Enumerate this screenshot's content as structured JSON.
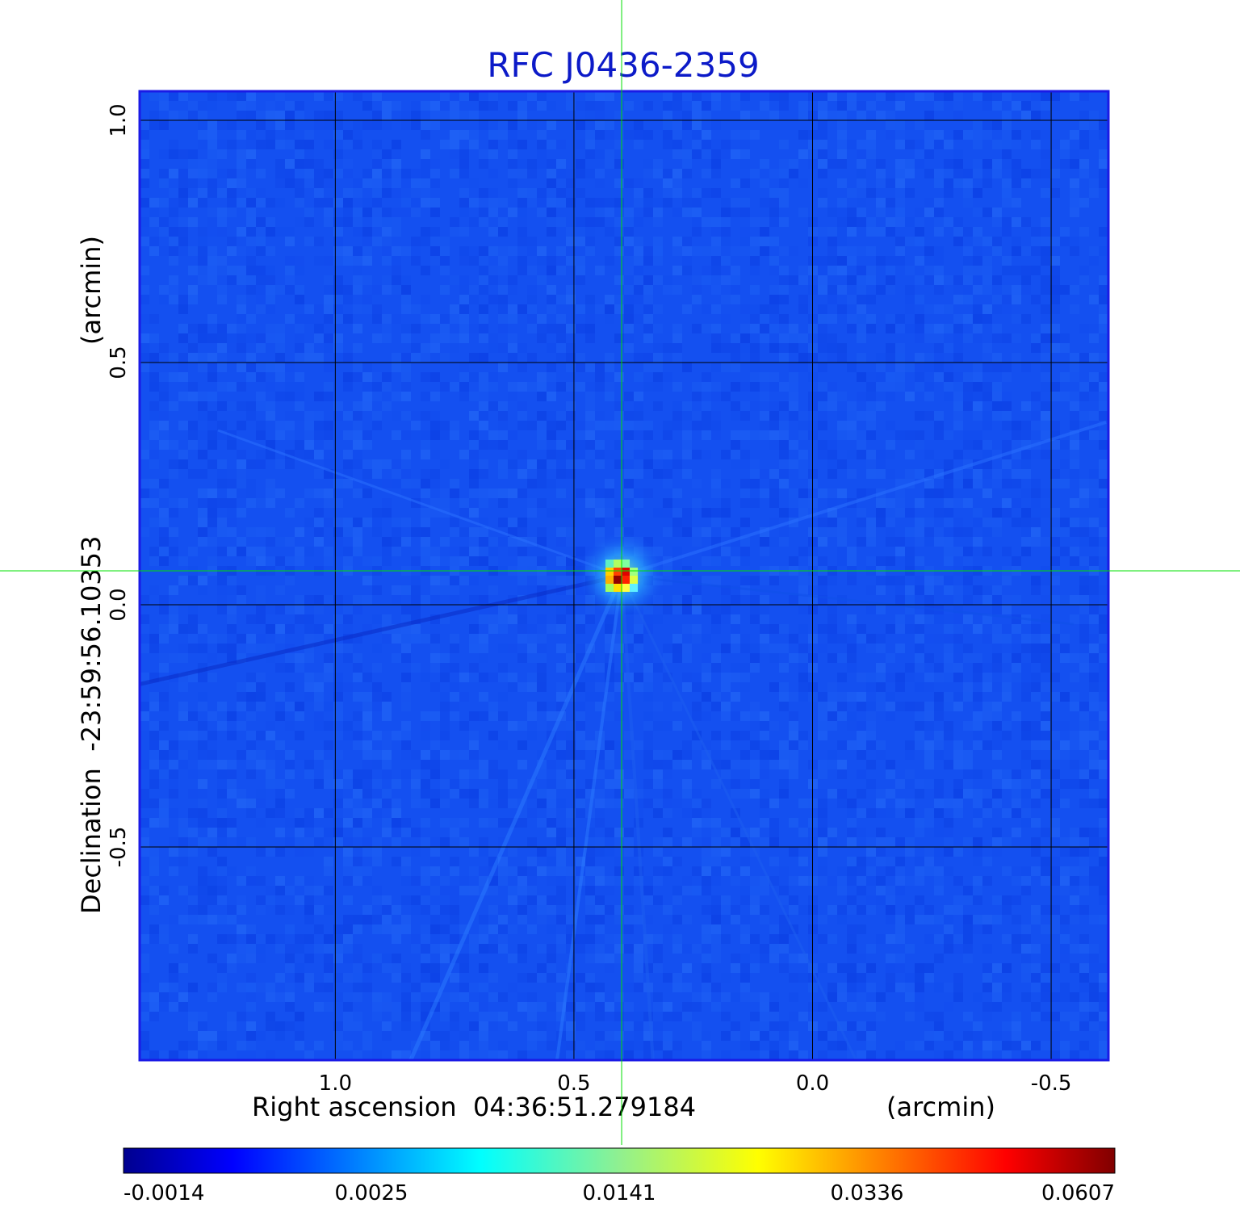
{
  "chart_data": {
    "type": "heatmap",
    "title": "RFC J0436-2359",
    "x_axis": {
      "label": "Right ascension  04:36:51.279184",
      "unit_label": "(arcmin)",
      "tick_labels": [
        "1.0",
        "0.5",
        "0.0",
        "-0.5"
      ],
      "tick_values": [
        1.0,
        0.5,
        0.0,
        -0.5
      ],
      "range": [
        1.41,
        -0.62
      ]
    },
    "y_axis": {
      "label": "Declination  -23:59:56.10353",
      "unit_label": "(arcmin)",
      "tick_labels": [
        "1.0",
        "0.5",
        "0.0",
        "-0.5"
      ],
      "tick_values": [
        1.0,
        0.5,
        0.0,
        -0.5
      ],
      "range": [
        -0.94,
        1.06
      ]
    },
    "grid": true,
    "colormap": "jet",
    "colormap_colors": [
      "#00008f",
      "#0000ff",
      "#00ffff",
      "#ffff00",
      "#ff0000",
      "#800000"
    ],
    "background_color": "#1450f0",
    "colorbar": {
      "tick_labels": [
        "-0.0014",
        "0.0025",
        "0.0141",
        "0.0336",
        "0.0607"
      ],
      "tick_values": [
        -0.0014,
        0.0025,
        0.0141,
        0.0336,
        0.0607
      ],
      "range": [
        -0.0014,
        0.0607
      ]
    },
    "peak": {
      "x": 0.4,
      "y": 0.06,
      "value": 0.0607
    },
    "crosshair": {
      "x": 0.4,
      "y": 0.07,
      "color": "#00e000"
    }
  }
}
